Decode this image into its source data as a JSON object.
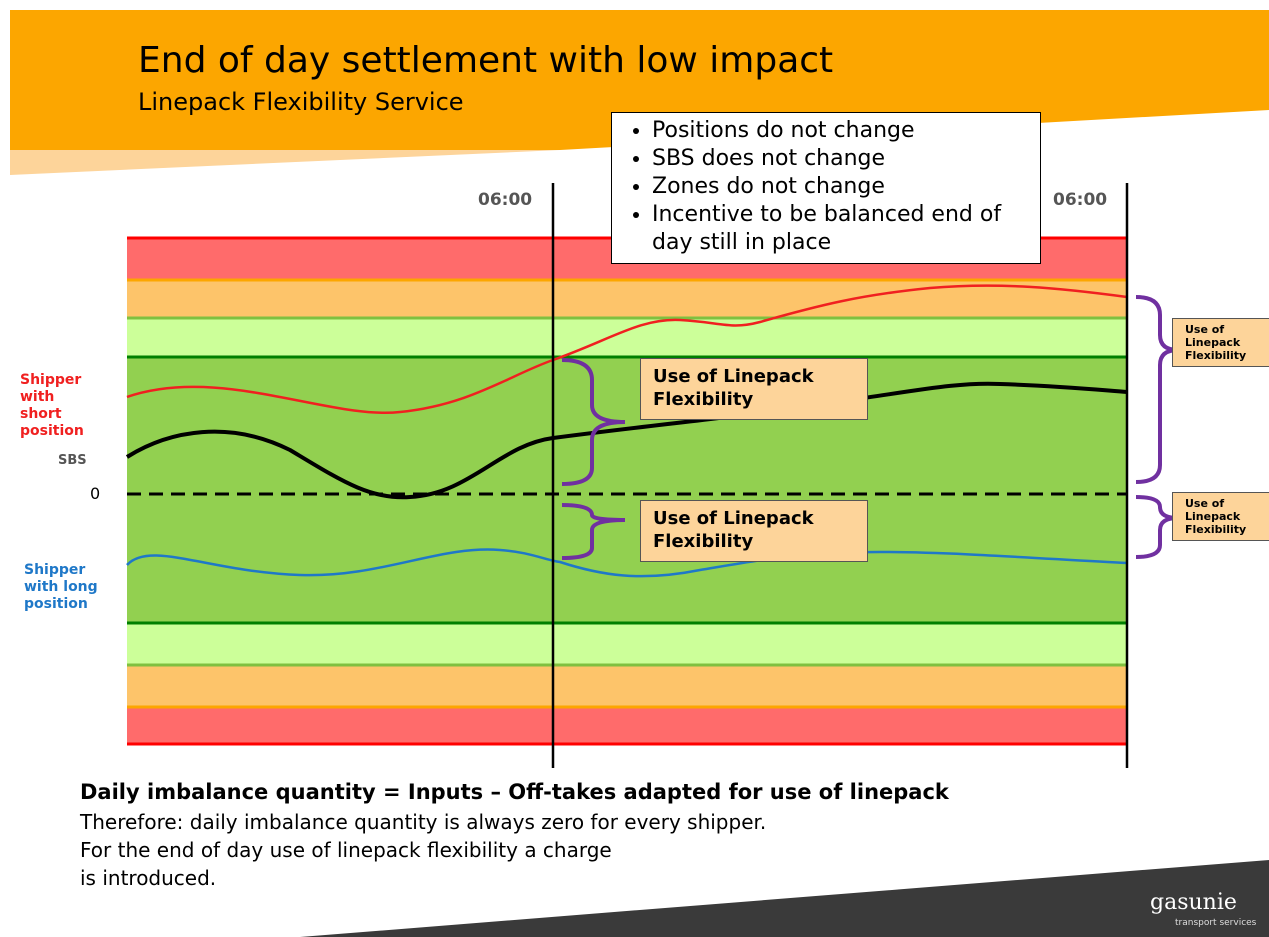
{
  "header": {
    "title": "End of day settlement with low impact",
    "subtitle": "Linepack Flexibility Service"
  },
  "bullets": [
    "Positions do not change",
    "SBS does not change",
    "Zones do not change",
    "Incentive to be balanced end of day still in place"
  ],
  "time_labels": [
    "06:00",
    "06:00"
  ],
  "left_labels": {
    "short": "Shipper with short position",
    "sbs": "SBS",
    "zero": "0",
    "long": "Shipper with long position"
  },
  "callouts": [
    "Use of Linepack Flexibility",
    "Use of Linepack Flexibility",
    "Use of Linepack Flexibility",
    "Use of Linepack Flexibility"
  ],
  "footer": {
    "heading": "Daily imbalance quantity = Inputs – Off-takes adapted for use of linepack",
    "lines": [
      "Therefore: daily imbalance quantity is always zero for every shipper.",
      "For the end of day use of linepack flexibility a charge",
      "is introduced."
    ]
  },
  "logo": {
    "name": "gasunie",
    "tagline": "transport services"
  }
}
